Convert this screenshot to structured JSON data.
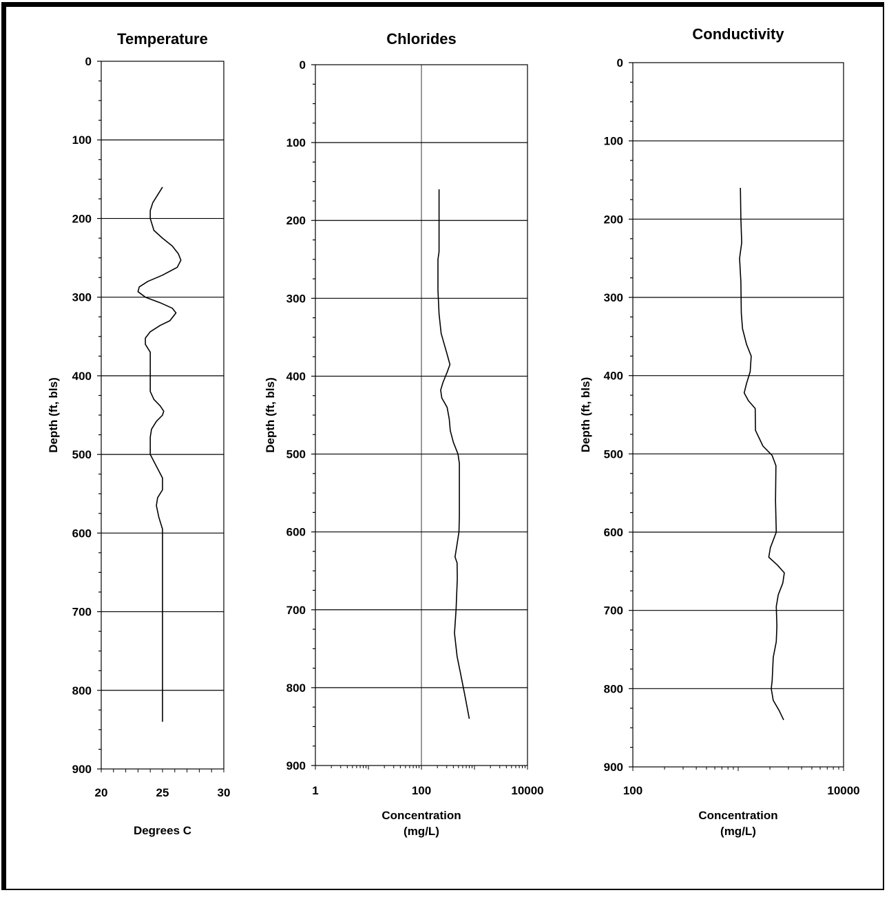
{
  "chart_data": [
    {
      "type": "line",
      "title": "Temperature",
      "ylabel": "Depth (ft, bls)",
      "xlabel_lines": [
        "Degrees C"
      ],
      "xscale": "linear",
      "xlim": [
        20,
        30
      ],
      "xticks": [
        20,
        25,
        30
      ],
      "x_tick_labels": [
        "20",
        "25",
        "30"
      ],
      "ylim": [
        0,
        900
      ],
      "yticks": [
        0,
        100,
        200,
        300,
        400,
        500,
        600,
        700,
        800,
        900
      ],
      "y_tick_labels": [
        "0",
        "100",
        "200",
        "300",
        "400",
        "500",
        "600",
        "700",
        "800",
        "900"
      ],
      "y_inverted": true,
      "horizontal_grid": true,
      "vertical_grid": false,
      "series": [
        {
          "points": [
            [
              25.0,
              160
            ],
            [
              24.6,
              170
            ],
            [
              24.2,
              180
            ],
            [
              24.0,
              190
            ],
            [
              24.0,
              200
            ],
            [
              24.3,
              215
            ],
            [
              25.0,
              225
            ],
            [
              25.8,
              235
            ],
            [
              26.3,
              245
            ],
            [
              26.5,
              253
            ],
            [
              26.2,
              262
            ],
            [
              25.0,
              272
            ],
            [
              23.8,
              280
            ],
            [
              23.1,
              287
            ],
            [
              23.0,
              293
            ],
            [
              23.6,
              300
            ],
            [
              24.8,
              307
            ],
            [
              25.8,
              314
            ],
            [
              26.1,
              320
            ],
            [
              25.6,
              330
            ],
            [
              24.8,
              336
            ],
            [
              24.0,
              344
            ],
            [
              23.6,
              352
            ],
            [
              23.6,
              360
            ],
            [
              24.0,
              370
            ],
            [
              24.0,
              400
            ],
            [
              24.0,
              416
            ],
            [
              24.0,
              420
            ],
            [
              24.3,
              430
            ],
            [
              24.8,
              438
            ],
            [
              25.1,
              445
            ],
            [
              25.0,
              450
            ],
            [
              24.5,
              458
            ],
            [
              24.1,
              468
            ],
            [
              24.0,
              478
            ],
            [
              24.0,
              500
            ],
            [
              24.5,
              515
            ],
            [
              25.0,
              530
            ],
            [
              25.0,
              545
            ],
            [
              24.6,
              555
            ],
            [
              24.5,
              565
            ],
            [
              24.7,
              580
            ],
            [
              25.0,
              595
            ],
            [
              25.0,
              600
            ],
            [
              25.0,
              840
            ]
          ]
        }
      ]
    },
    {
      "type": "line",
      "title": "Chlorides",
      "ylabel": "Depth (ft, bls)",
      "xlabel_lines": [
        "Concentration",
        "(mg/L)"
      ],
      "xscale": "log",
      "xlim": [
        1,
        10000
      ],
      "xticks": [
        1,
        100,
        10000
      ],
      "x_tick_labels": [
        "1",
        "100",
        "10000"
      ],
      "ylim": [
        0,
        900
      ],
      "yticks": [
        0,
        100,
        200,
        300,
        400,
        500,
        600,
        700,
        800,
        900
      ],
      "y_tick_labels": [
        "0",
        "100",
        "200",
        "300",
        "400",
        "500",
        "600",
        "700",
        "800",
        "900"
      ],
      "y_inverted": true,
      "horizontal_grid": true,
      "vertical_grid": true,
      "series": [
        {
          "points": [
            [
              215,
              160
            ],
            [
              215,
              240
            ],
            [
              205,
              250
            ],
            [
              205,
              290
            ],
            [
              215,
              320
            ],
            [
              235,
              345
            ],
            [
              300,
              370
            ],
            [
              345,
              385
            ],
            [
              305,
              395
            ],
            [
              255,
              408
            ],
            [
              230,
              418
            ],
            [
              242,
              428
            ],
            [
              305,
              440
            ],
            [
              335,
              455
            ],
            [
              350,
              470
            ],
            [
              400,
              485
            ],
            [
              490,
              500
            ],
            [
              520,
              512
            ],
            [
              520,
              580
            ],
            [
              510,
              600
            ],
            [
              460,
              620
            ],
            [
              430,
              632
            ],
            [
              470,
              640
            ],
            [
              475,
              660
            ],
            [
              450,
              700
            ],
            [
              420,
              730
            ],
            [
              470,
              760
            ],
            [
              540,
              780
            ],
            [
              660,
              810
            ],
            [
              800,
              840
            ]
          ]
        }
      ]
    },
    {
      "type": "line",
      "title": "Conductivity",
      "ylabel": "Depth (ft, bls)",
      "xlabel_lines": [
        "Concentration",
        "(mg/L)"
      ],
      "xscale": "log",
      "xlim": [
        100,
        10000
      ],
      "xticks": [
        100,
        10000
      ],
      "x_tick_labels": [
        "100",
        "10000"
      ],
      "ylim": [
        0,
        900
      ],
      "yticks": [
        0,
        100,
        200,
        300,
        400,
        500,
        600,
        700,
        800,
        900
      ],
      "y_tick_labels": [
        "0",
        "100",
        "200",
        "300",
        "400",
        "500",
        "600",
        "700",
        "800",
        "900"
      ],
      "y_inverted": true,
      "horizontal_grid": true,
      "vertical_grid": false,
      "series": [
        {
          "points": [
            [
              1050,
              160
            ],
            [
              1060,
              200
            ],
            [
              1080,
              230
            ],
            [
              1030,
              250
            ],
            [
              1060,
              280
            ],
            [
              1070,
              320
            ],
            [
              1100,
              340
            ],
            [
              1200,
              360
            ],
            [
              1330,
              375
            ],
            [
              1300,
              395
            ],
            [
              1200,
              410
            ],
            [
              1140,
              422
            ],
            [
              1250,
              432
            ],
            [
              1450,
              442
            ],
            [
              1460,
              470
            ],
            [
              1720,
              490
            ],
            [
              2100,
              502
            ],
            [
              2280,
              515
            ],
            [
              2260,
              560
            ],
            [
              2300,
              600
            ],
            [
              2020,
              620
            ],
            [
              1950,
              632
            ],
            [
              2350,
              642
            ],
            [
              2740,
              652
            ],
            [
              2650,
              665
            ],
            [
              2400,
              680
            ],
            [
              2300,
              695
            ],
            [
              2330,
              720
            ],
            [
              2300,
              740
            ],
            [
              2150,
              760
            ],
            [
              2100,
              790
            ],
            [
              2060,
              800
            ],
            [
              2150,
              815
            ],
            [
              2450,
              828
            ],
            [
              2700,
              840
            ]
          ]
        }
      ]
    }
  ]
}
